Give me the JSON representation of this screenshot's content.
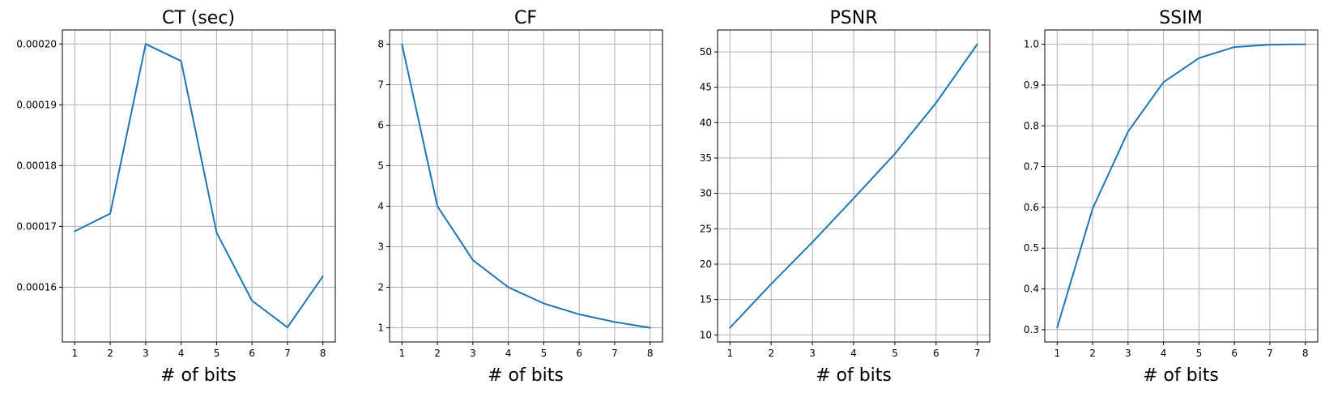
{
  "chart_data": [
    {
      "type": "line",
      "title": "CT (sec)",
      "xlabel": "# of bits",
      "ylabel": "",
      "grid": true,
      "color": "#1f77b4",
      "x": [
        1,
        2,
        3,
        4,
        5,
        6,
        7,
        8
      ],
      "y": [
        0.0001692,
        0.0001721,
        0.0002,
        0.0001972,
        0.000169,
        0.0001578,
        0.0001534,
        0.0001618
      ],
      "xlim": [
        0.65,
        8.35
      ],
      "ylim": [
        0.000151,
        0.0002023
      ],
      "xticks": [
        1,
        2,
        3,
        4,
        5,
        6,
        7,
        8
      ],
      "xtick_labels": [
        "1",
        "2",
        "3",
        "4",
        "5",
        "6",
        "7",
        "8"
      ],
      "yticks": [
        0.00016,
        0.00017,
        0.00018,
        0.00019,
        0.0002
      ],
      "ytick_labels": [
        "0.00016",
        "0.00017",
        "0.00018",
        "0.00019",
        "0.00020"
      ]
    },
    {
      "type": "line",
      "title": "CF",
      "xlabel": "# of bits",
      "ylabel": "",
      "grid": true,
      "color": "#1f77b4",
      "x": [
        1,
        2,
        3,
        4,
        5,
        6,
        7,
        8
      ],
      "y": [
        8,
        4,
        2.667,
        2,
        1.6,
        1.333,
        1.143,
        1
      ],
      "xlim": [
        0.65,
        8.35
      ],
      "ylim": [
        0.65,
        8.35
      ],
      "xticks": [
        1,
        2,
        3,
        4,
        5,
        6,
        7,
        8
      ],
      "xtick_labels": [
        "1",
        "2",
        "3",
        "4",
        "5",
        "6",
        "7",
        "8"
      ],
      "yticks": [
        1,
        2,
        3,
        4,
        5,
        6,
        7,
        8
      ],
      "ytick_labels": [
        "1",
        "2",
        "3",
        "4",
        "5",
        "6",
        "7",
        "8"
      ]
    },
    {
      "type": "line",
      "title": "PSNR",
      "xlabel": "# of bits",
      "ylabel": "",
      "grid": true,
      "color": "#1f77b4",
      "x": [
        1,
        2,
        3,
        4,
        5,
        6,
        7
      ],
      "y": [
        11.0,
        17.2,
        23.1,
        29.3,
        35.6,
        42.8,
        51.1
      ],
      "xlim": [
        0.7,
        7.3
      ],
      "ylim": [
        9.0,
        53.1
      ],
      "xticks": [
        1,
        2,
        3,
        4,
        5,
        6,
        7
      ],
      "xtick_labels": [
        "1",
        "2",
        "3",
        "4",
        "5",
        "6",
        "7"
      ],
      "yticks": [
        10,
        15,
        20,
        25,
        30,
        35,
        40,
        45,
        50
      ],
      "ytick_labels": [
        "10",
        "15",
        "20",
        "25",
        "30",
        "35",
        "40",
        "45",
        "50"
      ]
    },
    {
      "type": "line",
      "title": "SSIM",
      "xlabel": "# of bits",
      "ylabel": "",
      "grid": true,
      "color": "#1f77b4",
      "x": [
        1,
        2,
        3,
        4,
        5,
        6,
        7,
        8
      ],
      "y": [
        0.305,
        0.597,
        0.786,
        0.907,
        0.966,
        0.993,
        0.999,
        1.0
      ],
      "xlim": [
        0.65,
        8.35
      ],
      "ylim": [
        0.27,
        1.035
      ],
      "xticks": [
        1,
        2,
        3,
        4,
        5,
        6,
        7,
        8
      ],
      "xtick_labels": [
        "1",
        "2",
        "3",
        "4",
        "5",
        "6",
        "7",
        "8"
      ],
      "yticks": [
        0.3,
        0.4,
        0.5,
        0.6,
        0.7,
        0.8,
        0.9,
        1.0
      ],
      "ytick_labels": [
        "0.3",
        "0.4",
        "0.5",
        "0.6",
        "0.7",
        "0.8",
        "0.9",
        "1.0"
      ]
    }
  ]
}
